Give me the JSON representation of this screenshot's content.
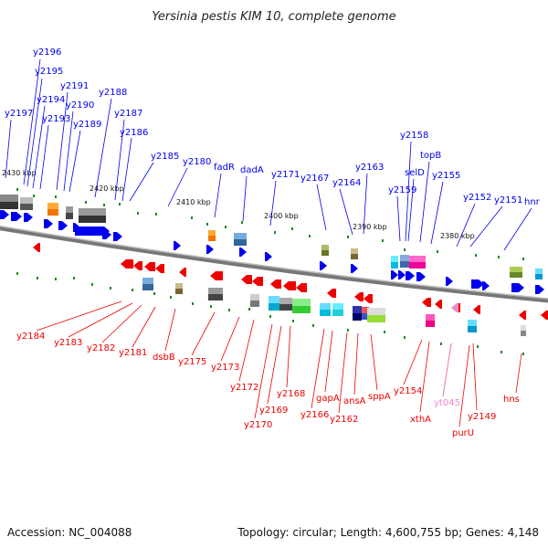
{
  "title": "Yersinia pestis KIM 10, complete genome",
  "footer": {
    "accession": "Accession: NC_004088",
    "summary": "Topology: circular; Length: 4,600,755 bp; Genes: 4,148"
  },
  "colors": {
    "forward": "#0000ee",
    "reverse": "#ee0000",
    "pseudo": "#ee88cc",
    "backbone": "#7a7a7a"
  },
  "scale_labels": [
    "2430 kbp",
    "2420 kbp",
    "2410 kbp",
    "2400 kbp",
    "2390 kbp",
    "2380 kbp"
  ],
  "forward_genes": [
    "y2197",
    "y2196",
    "y2195",
    "y2194",
    "y2193",
    "y2191",
    "y2190",
    "y2189",
    "y2188",
    "y2187",
    "y2186",
    "y2185",
    "y2180",
    "fadR",
    "dadA",
    "y2171",
    "y2167",
    "y2164",
    "y2163",
    "y2159",
    "selD",
    "y2158",
    "topB",
    "y2155",
    "y2152",
    "y2151",
    "hnr"
  ],
  "reverse_genes": [
    "y2184",
    "y2183",
    "y2182",
    "y2181",
    "dsbB",
    "y2175",
    "y2173",
    "y2172",
    "y2170",
    "y2169",
    "y2168",
    "y2166",
    "gapA",
    "y2162",
    "ansA",
    "sppA",
    "y2154",
    "xthA",
    "yt045",
    "purU",
    "y2149",
    "hns"
  ]
}
